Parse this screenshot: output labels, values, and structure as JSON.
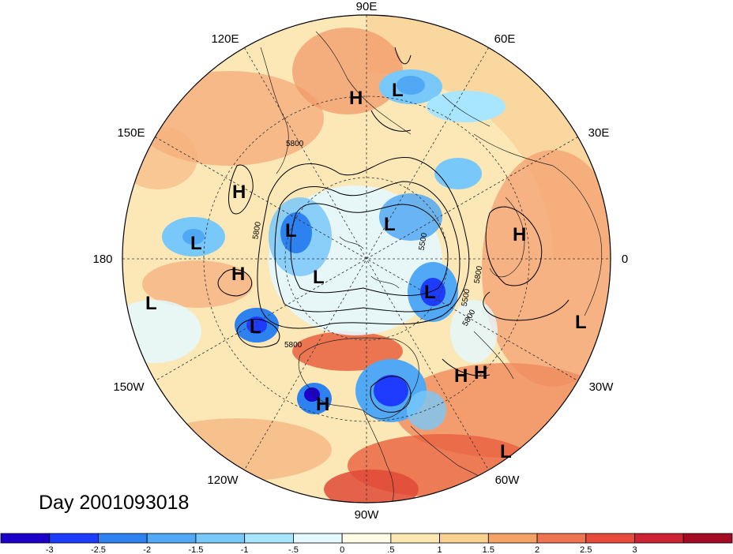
{
  "title": "Day 2001093018",
  "longitude_labels": [
    {
      "key": "90e",
      "text": "90E"
    },
    {
      "key": "120e",
      "text": "120E"
    },
    {
      "key": "60e",
      "text": "60E"
    },
    {
      "key": "150e",
      "text": "150E"
    },
    {
      "key": "30e",
      "text": "30E"
    },
    {
      "key": "180",
      "text": "180"
    },
    {
      "key": "0",
      "text": "0"
    },
    {
      "key": "150w",
      "text": "150W"
    },
    {
      "key": "30w",
      "text": "30W"
    },
    {
      "key": "120w",
      "text": "120W"
    },
    {
      "key": "60w",
      "text": "60W"
    },
    {
      "key": "90w",
      "text": "90W"
    }
  ],
  "pressure_centers": [
    {
      "type": "H",
      "id": "h1"
    },
    {
      "type": "L",
      "id": "l1"
    },
    {
      "type": "H",
      "id": "h2"
    },
    {
      "type": "L",
      "id": "l2"
    },
    {
      "type": "L",
      "id": "l3"
    },
    {
      "type": "L",
      "id": "l4"
    },
    {
      "type": "H",
      "id": "h3"
    },
    {
      "type": "H",
      "id": "h4"
    },
    {
      "type": "L",
      "id": "l5"
    },
    {
      "type": "L",
      "id": "l6"
    },
    {
      "type": "L",
      "id": "l7"
    },
    {
      "type": "L",
      "id": "l8"
    },
    {
      "type": "L",
      "id": "l9"
    },
    {
      "type": "H",
      "id": "h5"
    },
    {
      "type": "H",
      "id": "h6"
    },
    {
      "type": "H",
      "id": "h7"
    },
    {
      "type": "L",
      "id": "l10"
    }
  ],
  "contour_labels": [
    "5800",
    "5800",
    "5800",
    "5500",
    "5500",
    "5800",
    "5800"
  ],
  "colorbar": {
    "colors": [
      "#1d00c8",
      "#1e3cff",
      "#2d82f0",
      "#51a8f5",
      "#78c8fa",
      "#a8e6ff",
      "#e4f8ff",
      "#fffbe6",
      "#fbe8b0",
      "#f8d090",
      "#f5a266",
      "#ee7350",
      "#e84a3c",
      "#cc2233",
      "#a40a24"
    ],
    "labels": [
      "-3",
      "-2.5",
      "-2",
      "-1.5",
      "-1",
      "-.5",
      "0",
      ".5",
      "1",
      "1.5",
      "2",
      "2.5",
      "3"
    ]
  }
}
